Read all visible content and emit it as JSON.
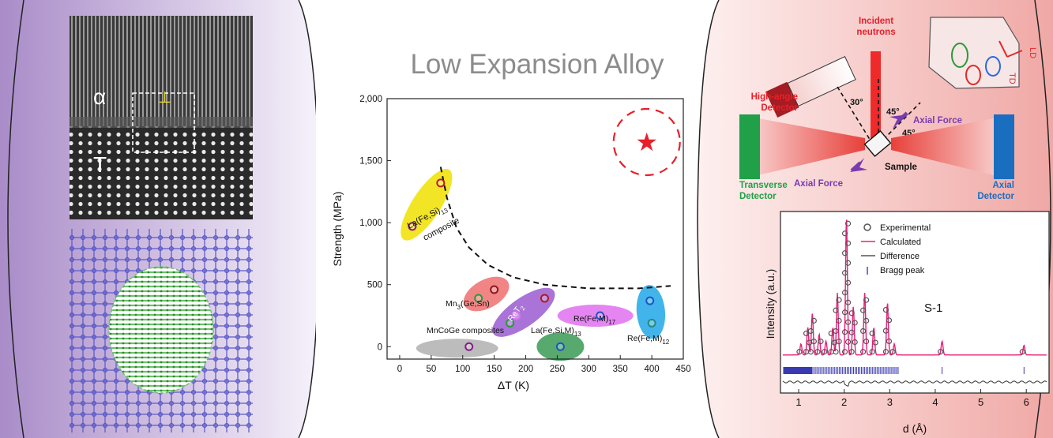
{
  "title": "Low Expansion Alloy",
  "micrograph": {
    "phase_alpha": "α",
    "phase_tau": "T",
    "dislocation_symbol": "⊥"
  },
  "neutron_setup": {
    "incident": [
      "Incident",
      "neutrons"
    ],
    "high_angle_detector": [
      "High-angle",
      "Detector"
    ],
    "angle_30": "30°",
    "angle_45a": "45°",
    "angle_45b": "45°",
    "axial_force_top": "Axial Force",
    "axial_force_bottom": "Axial Force",
    "sample": "Sample",
    "transverse_detector": [
      "Transverse",
      "Detector"
    ],
    "axial_detector": [
      "Axial",
      "Detector"
    ],
    "inset_ld": "LD",
    "inset_td": "TD"
  },
  "diffraction": {
    "legend": [
      "Experimental",
      "Calculated",
      "Difference",
      "Bragg peak"
    ],
    "sample_label": "S-1",
    "xlabel": "d (Å)",
    "ylabel": "Intensity (a.u.)",
    "xticks": [
      "1",
      "2",
      "3",
      "4",
      "5",
      "6"
    ],
    "colors": {
      "experimental": "#555555",
      "calculated": "#e8207a",
      "difference": "#333333",
      "bragg": "#3a3ab0"
    }
  },
  "chart_data": {
    "type": "scatter",
    "xlabel": "ΔT (K)",
    "ylabel": "Strength (MPa)",
    "xlim": [
      -20,
      450
    ],
    "ylim": [
      -100,
      2000
    ],
    "xticks": [
      "0",
      "50",
      "100",
      "150",
      "200",
      "250",
      "300",
      "350",
      "400",
      "450"
    ],
    "yticks": [
      "0",
      "500",
      "1,000",
      "1,500",
      "2,000"
    ],
    "series": [
      {
        "name": "La(Fe,Si)₁₃ composite",
        "color": "#f0e000",
        "points": [
          [
            20,
            970
          ],
          [
            65,
            1320
          ]
        ]
      },
      {
        "name": "Mn₃(Ge,Sn)",
        "color": "#ee7070",
        "points": [
          [
            125,
            390
          ],
          [
            150,
            460
          ]
        ]
      },
      {
        "name": "ReT₂",
        "color": "#9a5ad0",
        "points": [
          [
            175,
            190
          ],
          [
            185,
            250
          ],
          [
            230,
            390
          ]
        ]
      },
      {
        "name": "MnCoGe composites",
        "color": "#b0b0b0",
        "points": [
          [
            110,
            0
          ]
        ]
      },
      {
        "name": "La(Fe,Si,M)₁₃",
        "color": "#3a9a55",
        "points": [
          [
            255,
            0
          ]
        ]
      },
      {
        "name": "Re(Fe,M)₁₇",
        "color": "#e070f0",
        "points": [
          [
            318,
            250
          ]
        ]
      },
      {
        "name": "Re(Fe,M)₁₂",
        "color": "#20a8e8",
        "points": [
          [
            397,
            370
          ],
          [
            400,
            190
          ]
        ]
      },
      {
        "name": "",
        "color": "#e8202a",
        "points": [
          [
            392,
            1650
          ]
        ]
      }
    ],
    "labels": {
      "la_fe_si": "La(Fe,Si)",
      "la_fe_si_sub": "13",
      "composite": "composite",
      "mn3": "Mn",
      "mn3_sub": "3",
      "mn3_rest": "(Ge,Sn)",
      "ret": "ReT",
      "ret_sub": "2",
      "mncoge": "MnCoGe composites",
      "lafesim": "La(Fe,Si,M)",
      "lafesim_sub": "13",
      "refem17": "Re(Fe,M)",
      "refem17_sub": "17",
      "refem12": "Re(Fe,M)",
      "refem12_sub": "12"
    },
    "boundary_curve": [
      [
        65,
        1450
      ],
      [
        75,
        1200
      ],
      [
        90,
        960
      ],
      [
        110,
        800
      ],
      [
        140,
        660
      ],
      [
        180,
        560
      ],
      [
        230,
        500
      ],
      [
        300,
        470
      ],
      [
        380,
        470
      ],
      [
        430,
        490
      ]
    ]
  }
}
